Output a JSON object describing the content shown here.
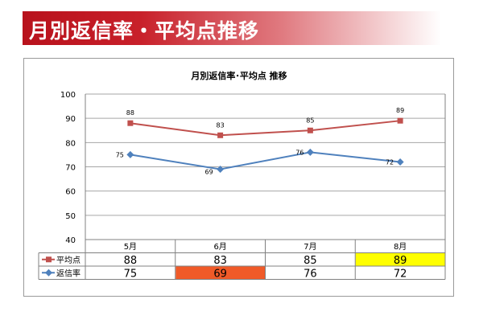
{
  "banner": {
    "title": "月別返信率・平均点推移"
  },
  "chart_data": {
    "type": "line",
    "title": "月別返信率･平均点 推移",
    "categories": [
      "5月",
      "6月",
      "7月",
      "8月"
    ],
    "ylim": [
      40,
      100
    ],
    "yticks": [
      40,
      50,
      60,
      70,
      80,
      90,
      100
    ],
    "grid": true,
    "legend": "bottom-table",
    "series": [
      {
        "name": "平均点",
        "values": [
          88,
          83,
          85,
          89
        ],
        "color": "#c0504d",
        "marker": "square",
        "highlight": {
          "index": 3,
          "color": "#ffff00"
        }
      },
      {
        "name": "返信率",
        "values": [
          75,
          69,
          76,
          72
        ],
        "color": "#4f81bd",
        "marker": "diamond",
        "highlight": {
          "index": 1,
          "color": "#f05a28"
        }
      }
    ]
  }
}
